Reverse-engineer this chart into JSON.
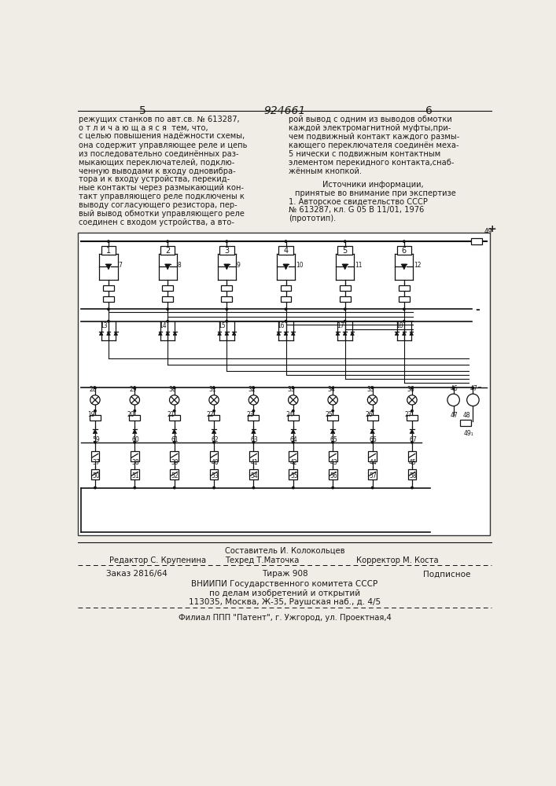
{
  "bg_color": "#f0ede6",
  "patent_number": "924661",
  "page_left": "5",
  "page_right": "6",
  "left_text": [
    "режущих станков по авт.св. № 613287,",
    "о т л и ч а ю щ а я с я  тем, что,",
    "с целью повышения надёжности схемы,",
    "она содержит управляющее реле и цепь",
    "из последовательно соединённых раз-",
    "мыкающих переключателей, подклю-",
    "ченную выводами к входу одновибра-",
    "тора и к входу устройства, перекид-",
    "ные контакты через размыкающий кон-",
    "такт управляющего реле подключены к",
    "выводу согласующего резистора, пер-",
    "вый вывод обмотки управляющего реле",
    "соединен с входом устройства, а вто-"
  ],
  "right_text": [
    "рой вывод с одним из выводов обмотки",
    "каждой электромагнитной муфты,при-",
    "чем подвижный контакт каждого размы-",
    "кающего переключателя соединён меха-",
    "5 нически с подвижным контактным",
    "элементом перекидного контакта,снаб-",
    "жённым кнопкой."
  ],
  "sources_title": "Источники информации,",
  "sources_subtitle": "принятые во внимание при экспертизе",
  "source_1": "1. Авторское свидетельство СССР",
  "source_2": "№ 613287, кл. G 05 B 11/01, 1976",
  "source_3": "(прототип).",
  "staff_line1": "Составитель И. Колокольцев",
  "staff_line2_left": "Редактор С. Крупенина",
  "staff_line2_mid": "Техред Т.Маточка",
  "staff_line2_right": "Корректор М. Коста",
  "order_left": "Заказ 2816/64",
  "order_mid": "Тираж 908",
  "order_right": "Подписное",
  "org_line1": "ВНИИПИ Государственного комитета СССР",
  "org_line2": "по делам изобретений и открытий",
  "org_line3": "113035, Москва, Ж-35, Раушская наб., д. 4/5",
  "branch_line": "Филиал ППП \"Патент\", г. Ужгород, ул. Проектная,4",
  "text_color": "#1a1a1a",
  "circuit_border_color": "#333333",
  "line_color": "#111111"
}
